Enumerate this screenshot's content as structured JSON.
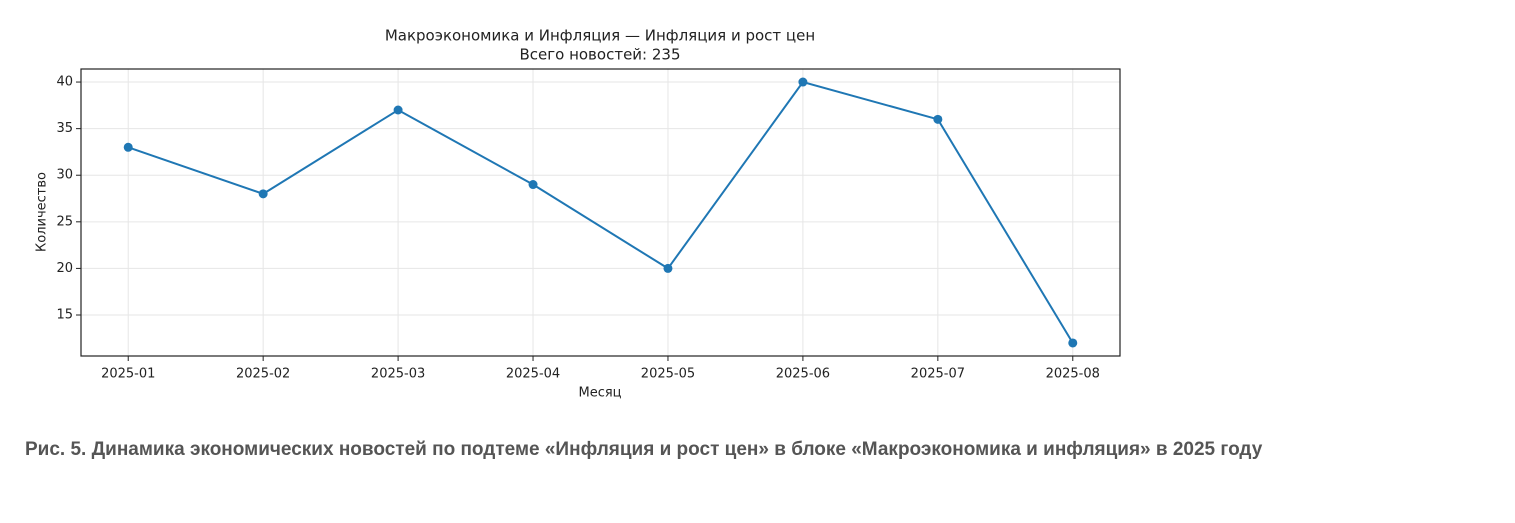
{
  "chart_data": {
    "type": "line",
    "title": "Макроэкономика и Инфляция — Инфляция и рост цен",
    "subtitle": "Всего новостей: 235",
    "x_label": "Месяц",
    "y_label": "Количество",
    "categories": [
      "2025-01",
      "2025-02",
      "2025-03",
      "2025-04",
      "2025-05",
      "2025-06",
      "2025-07",
      "2025-08"
    ],
    "values": [
      33,
      28,
      37,
      29,
      20,
      40,
      36,
      12
    ],
    "color": "#1f77b4",
    "ylim": [
      10.6,
      41.4
    ],
    "yticks": [
      15,
      20,
      25,
      30,
      35,
      40
    ],
    "grid": true
  },
  "caption": "Рис. 5. Динамика экономических новостей по подтеме «Инфляция и рост цен» в блоке «Макроэкономика и инфляция» в 2025 году"
}
